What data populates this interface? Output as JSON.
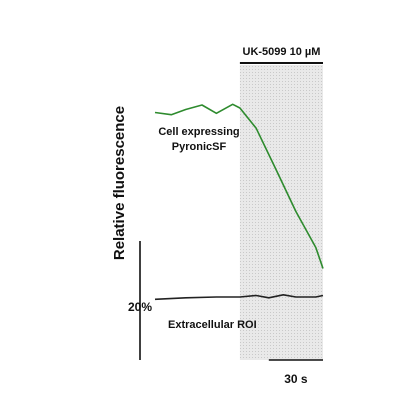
{
  "chart_data": {
    "type": "line",
    "title": "",
    "ylabel": "Relative fluorescence",
    "xlabel": "",
    "treatment": {
      "label": "UK-5099 10 µM",
      "start_s": 0,
      "end_s": 46
    },
    "x_unit": "s",
    "xlim": [
      -47,
      46
    ],
    "ylim": [
      0,
      160
    ],
    "scale_bars": {
      "y_label": "20%",
      "y_value": 20,
      "x_label": "30 s",
      "x_value": 30
    },
    "series": [
      {
        "name": "Cell expressing PyronicSF",
        "label_lines": [
          "Cell expressing",
          "PyronicSF"
        ],
        "color": "#2e8b2e",
        "x": [
          -47,
          -38,
          -30,
          -21,
          -13,
          -4,
          0,
          9,
          20,
          31,
          42,
          46
        ],
        "y": [
          132.0,
          130.8,
          133.6,
          136.0,
          131.6,
          136.4,
          134.4,
          123.6,
          101.6,
          79.2,
          60.0,
          48.8
        ]
      },
      {
        "name": "Extracellular ROI",
        "label_lines": [
          "Extracellular ROI"
        ],
        "color": "#222222",
        "x": [
          -47,
          -30,
          -13,
          0,
          9,
          16,
          24,
          31,
          42,
          46
        ],
        "y": [
          32.4,
          33.2,
          33.6,
          33.6,
          34.4,
          33.2,
          34.8,
          33.6,
          33.6,
          34.4
        ]
      }
    ],
    "shade_color": "#e9e9e9"
  }
}
